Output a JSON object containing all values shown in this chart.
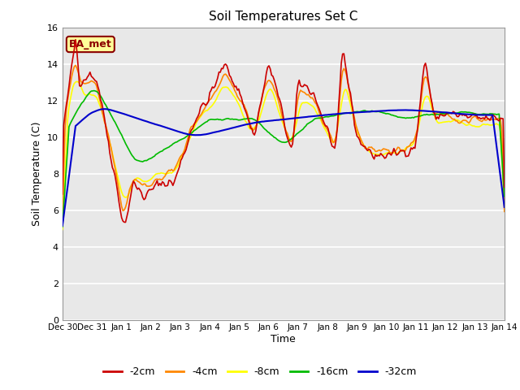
{
  "title": "Soil Temperatures Set C",
  "xlabel": "Time",
  "ylabel": "Soil Temperature (C)",
  "ylim": [
    0,
    16
  ],
  "yticks": [
    0,
    2,
    4,
    6,
    8,
    10,
    12,
    14,
    16
  ],
  "bg_color": "#e8e8e8",
  "fig_color": "#ffffff",
  "annotation_text": "BA_met",
  "annotation_bg": "#ffff99",
  "annotation_border": "#8b0000",
  "series_colors": {
    "-2cm": "#cc0000",
    "-4cm": "#ff8800",
    "-8cm": "#ffff00",
    "-16cm": "#00bb00",
    "-32cm": "#0000cc"
  },
  "x_tick_labels": [
    "Dec 30",
    "Dec 31",
    "Jan 1",
    "Jan 2",
    "Jan 3",
    "Jan 4",
    "Jan 5",
    "Jan 6",
    "Jan 7",
    "Jan 8",
    "Jan 9",
    "Jan 10",
    "Jan 11",
    "Jan 12",
    "Jan 13",
    "Jan 14"
  ],
  "n_points": 337,
  "legend_labels": [
    "-2cm",
    "-4cm",
    "-8cm",
    "-16cm",
    "-32cm"
  ]
}
